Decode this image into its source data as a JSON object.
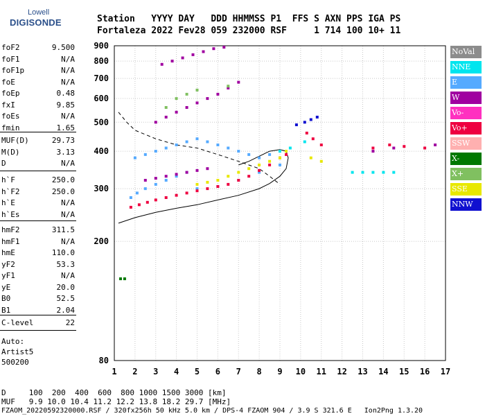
{
  "logo": {
    "top": "Lowell",
    "bottom": "DIGISONDE"
  },
  "header": {
    "line1": "Station   YYYY DAY   DDD HHMMSS P1  FFS S AXN PPS IGA PS",
    "line2": "Fortaleza 2022 Fev28 059 232000 RSF     1 714 100 10+ 11"
  },
  "params": {
    "group1": [
      {
        "name": "foF2",
        "value": "9.500"
      },
      {
        "name": "foF1",
        "value": "N/A"
      },
      {
        "name": "foF1p",
        "value": "N/A"
      },
      {
        "name": "foE",
        "value": "N/A"
      },
      {
        "name": "foEp",
        "value": "0.48"
      },
      {
        "name": "fxI",
        "value": "9.85"
      },
      {
        "name": "foEs",
        "value": "N/A"
      },
      {
        "name": "fmin",
        "value": "1.65"
      }
    ],
    "group2": [
      {
        "name": "MUF(D)",
        "value": "29.73"
      },
      {
        "name": "M(D)",
        "value": "3.13"
      },
      {
        "name": "D",
        "value": "N/A"
      }
    ],
    "group3": [
      {
        "name": "h`F",
        "value": "250.0"
      },
      {
        "name": "h`F2",
        "value": "250.0"
      },
      {
        "name": "h`E",
        "value": "N/A"
      },
      {
        "name": "h`Es",
        "value": "N/A"
      }
    ],
    "group4": [
      {
        "name": "hmF2",
        "value": "311.5"
      },
      {
        "name": "hmF1",
        "value": "N/A"
      },
      {
        "name": "hmE",
        "value": "110.0"
      },
      {
        "name": "yF2",
        "value": "53.3"
      },
      {
        "name": "yF1",
        "value": "N/A"
      },
      {
        "name": "yE",
        "value": "20.0"
      },
      {
        "name": "B0",
        "value": "52.5"
      },
      {
        "name": "B1",
        "value": "2.04"
      }
    ],
    "group5": [
      {
        "name": "C-level",
        "value": "22"
      }
    ]
  },
  "auto": {
    "line1": "Auto:",
    "line2": "Artist5",
    "line3": "500200"
  },
  "legend": [
    {
      "label": "NoVal",
      "color": "#8c8c8c"
    },
    {
      "label": "NNE",
      "color": "#00e5ee"
    },
    {
      "label": "E",
      "color": "#55aaff"
    },
    {
      "label": "W",
      "color": "#a000a0"
    },
    {
      "label": "Vo-",
      "color": "#ff30c0"
    },
    {
      "label": "Vo+",
      "color": "#ee0040"
    },
    {
      "label": "SSW",
      "color": "#ffb0b0"
    },
    {
      "label": "X-",
      "color": "#007800"
    },
    {
      "label": "X+",
      "color": "#80c060"
    },
    {
      "label": "SSE",
      "color": "#e8e800"
    },
    {
      "label": "NNW",
      "color": "#1010d0"
    }
  ],
  "footer": {
    "d_line": "D     100  200  400  600  800 1000 1500 3000 [km]",
    "muf_line": "MUF   9.9 10.0 10.4 11.2 12.2 13.8 18.2 29.7 [MHz]",
    "file_line": "FZAOM_20220592320000.RSF / 320fx256h 50 kHz 5.0 km / DPS-4 FZAOM 904 / 3.9 S 321.6 E   Ion2Png 1.3.20"
  },
  "chart_data": {
    "type": "scatter",
    "x_unit": "MHz",
    "y_unit": "km",
    "xlim": [
      1,
      17
    ],
    "ylim": [
      80,
      900
    ],
    "x_ticks": [
      "1",
      "2",
      "3",
      "4",
      "5",
      "6",
      "7",
      "8",
      "9",
      "10",
      "11",
      "12",
      "13",
      "14",
      "15",
      "16",
      "17"
    ],
    "y_ticks": [
      "80",
      "200",
      "300",
      "400",
      "500",
      "600",
      "700",
      "800",
      "900"
    ],
    "y_scale": "log",
    "grid": "dotted",
    "legend_position": "right",
    "series": [
      {
        "name": "E",
        "color": "#55aaff",
        "points": [
          [
            1.8,
            280
          ],
          [
            2.1,
            290
          ],
          [
            2.5,
            300
          ],
          [
            3,
            310
          ],
          [
            3.5,
            320
          ],
          [
            4,
            330
          ],
          [
            4.5,
            340
          ],
          [
            2,
            380
          ],
          [
            2.5,
            390
          ],
          [
            3,
            400
          ],
          [
            3.5,
            410
          ],
          [
            4,
            420
          ],
          [
            4.5,
            430
          ],
          [
            5,
            440
          ],
          [
            5.5,
            430
          ],
          [
            6,
            420
          ],
          [
            6.5,
            410
          ],
          [
            7,
            400
          ],
          [
            7.5,
            390
          ],
          [
            8,
            380
          ],
          [
            8.5,
            390
          ],
          [
            9,
            400
          ],
          [
            5,
            300
          ],
          [
            6,
            305
          ],
          [
            7,
            320
          ],
          [
            8,
            340
          ],
          [
            9,
            360
          ]
        ]
      },
      {
        "name": "Vo+",
        "color": "#ee0040",
        "points": [
          [
            1.8,
            260
          ],
          [
            2.2,
            265
          ],
          [
            2.6,
            270
          ],
          [
            3,
            275
          ],
          [
            3.5,
            280
          ],
          [
            4,
            285
          ],
          [
            4.5,
            290
          ],
          [
            5,
            295
          ],
          [
            5.5,
            300
          ],
          [
            6,
            305
          ],
          [
            6.5,
            310
          ],
          [
            7,
            320
          ],
          [
            7.5,
            330
          ],
          [
            8,
            345
          ],
          [
            8.5,
            360
          ],
          [
            9,
            380
          ],
          [
            9.3,
            390
          ],
          [
            10.3,
            460
          ],
          [
            10.6,
            440
          ],
          [
            11,
            420
          ],
          [
            13.5,
            410
          ],
          [
            14.3,
            420
          ],
          [
            15,
            415
          ],
          [
            16,
            410
          ]
        ]
      },
      {
        "name": "W",
        "color": "#a000a0",
        "points": [
          [
            2.5,
            320
          ],
          [
            3,
            325
          ],
          [
            3.5,
            330
          ],
          [
            4,
            335
          ],
          [
            4.5,
            340
          ],
          [
            5,
            345
          ],
          [
            5.5,
            350
          ],
          [
            3,
            500
          ],
          [
            3.5,
            520
          ],
          [
            4,
            540
          ],
          [
            4.5,
            560
          ],
          [
            5,
            580
          ],
          [
            5.5,
            600
          ],
          [
            6,
            620
          ],
          [
            6.5,
            650
          ],
          [
            7,
            680
          ],
          [
            3.3,
            780
          ],
          [
            3.8,
            800
          ],
          [
            4.3,
            820
          ],
          [
            4.8,
            840
          ],
          [
            5.3,
            860
          ],
          [
            5.8,
            880
          ],
          [
            6.3,
            890
          ],
          [
            13.5,
            400
          ],
          [
            14.5,
            410
          ],
          [
            16.5,
            420
          ]
        ]
      },
      {
        "name": "SSE",
        "color": "#e8e800",
        "points": [
          [
            5,
            310
          ],
          [
            5.5,
            315
          ],
          [
            6,
            320
          ],
          [
            6.5,
            330
          ],
          [
            7,
            340
          ],
          [
            7.5,
            350
          ],
          [
            8,
            360
          ],
          [
            8.5,
            370
          ],
          [
            9,
            380
          ],
          [
            9.3,
            400
          ],
          [
            10.5,
            380
          ],
          [
            11,
            370
          ]
        ]
      },
      {
        "name": "NNE",
        "color": "#00e5ee",
        "points": [
          [
            9,
            400
          ],
          [
            9.5,
            410
          ],
          [
            10.2,
            430
          ],
          [
            12.5,
            340
          ],
          [
            13,
            340
          ],
          [
            13.5,
            340
          ],
          [
            14,
            340
          ],
          [
            14.5,
            340
          ]
        ]
      },
      {
        "name": "NNW",
        "color": "#1010d0",
        "points": [
          [
            9.8,
            490
          ],
          [
            10.2,
            500
          ],
          [
            10.5,
            510
          ],
          [
            10.8,
            520
          ]
        ]
      },
      {
        "name": "X+",
        "color": "#80c060",
        "points": [
          [
            4,
            600
          ],
          [
            4.5,
            620
          ],
          [
            5,
            640
          ],
          [
            3.5,
            560
          ],
          [
            6.5,
            660
          ]
        ]
      },
      {
        "name": "X-",
        "color": "#007800",
        "points": [
          [
            1.3,
            150
          ],
          [
            1.5,
            150
          ]
        ]
      }
    ],
    "curves": [
      {
        "name": "profile",
        "style": "solid",
        "points": [
          [
            1.2,
            230
          ],
          [
            2,
            240
          ],
          [
            3,
            250
          ],
          [
            4,
            258
          ],
          [
            5,
            265
          ],
          [
            6,
            275
          ],
          [
            7,
            285
          ],
          [
            8,
            300
          ],
          [
            8.5,
            312
          ],
          [
            9,
            330
          ],
          [
            9.3,
            350
          ],
          [
            9.4,
            380
          ],
          [
            9.3,
            400
          ],
          [
            9,
            405
          ],
          [
            8.5,
            400
          ],
          [
            8,
            385
          ],
          [
            7.5,
            370
          ],
          [
            7,
            360
          ]
        ]
      },
      {
        "name": "trace",
        "style": "dashed",
        "points": [
          [
            1.2,
            540
          ],
          [
            1.6,
            500
          ],
          [
            2,
            470
          ],
          [
            3,
            440
          ],
          [
            4,
            420
          ],
          [
            5,
            410
          ],
          [
            6,
            390
          ],
          [
            7,
            370
          ],
          [
            8,
            350
          ],
          [
            8.5,
            330
          ],
          [
            9,
            310
          ]
        ]
      }
    ]
  }
}
